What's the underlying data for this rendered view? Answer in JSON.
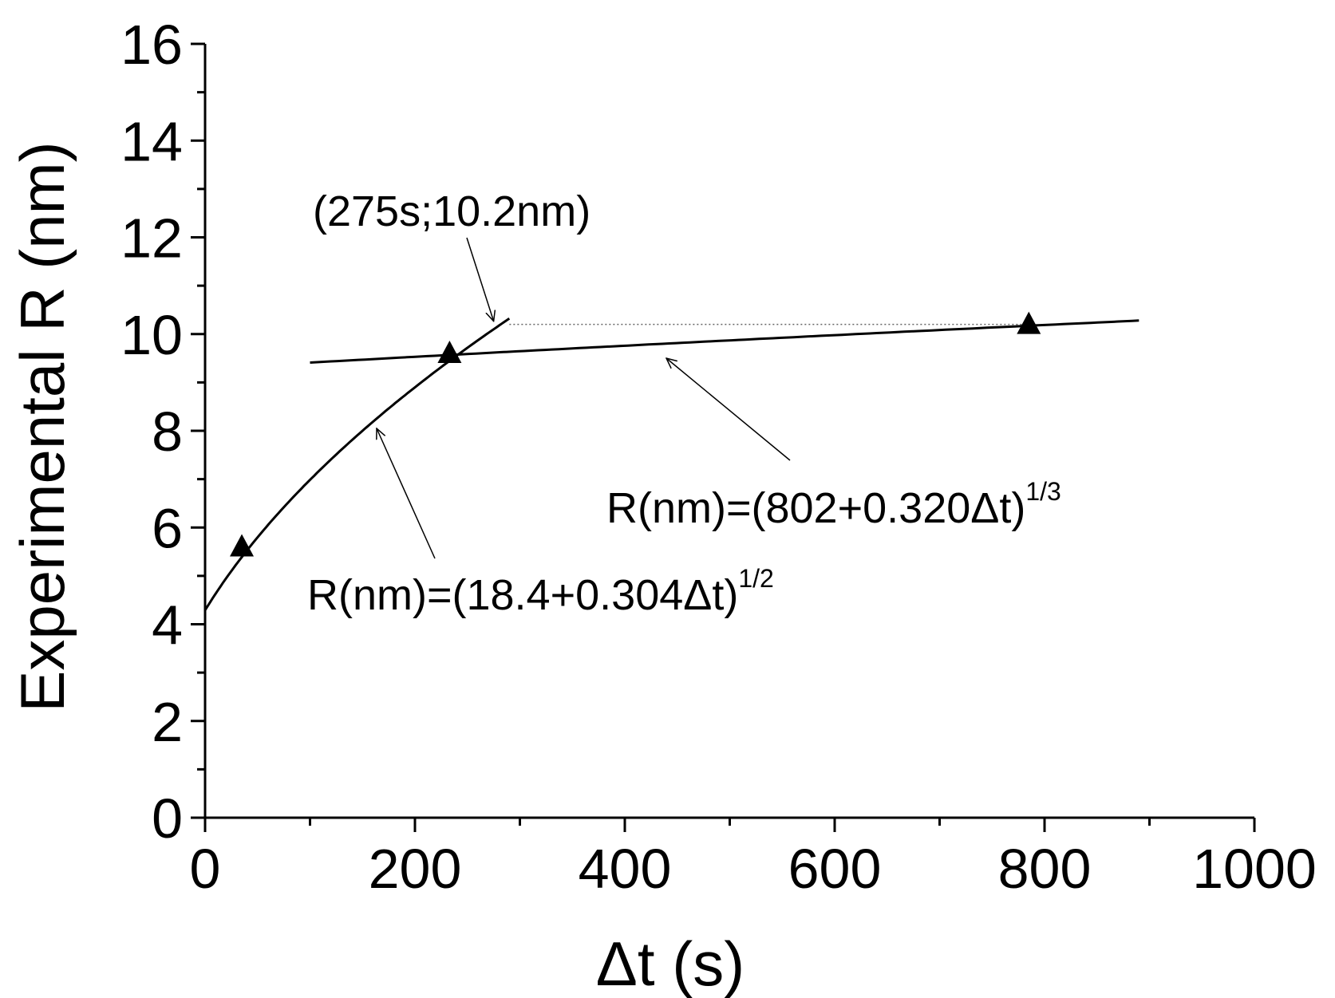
{
  "chart_data": {
    "type": "scatter",
    "xlabel": "Δt (s)",
    "ylabel": "Experimental R (nm)",
    "xlim": [
      0,
      1000
    ],
    "ylim": [
      0,
      16
    ],
    "x_ticks": [
      "0",
      "200",
      "400",
      "600",
      "800",
      "1000"
    ],
    "y_ticks": [
      "0",
      "2",
      "4",
      "6",
      "8",
      "10",
      "12",
      "14",
      "16"
    ],
    "grid": false,
    "series": [
      {
        "marker": "triangle",
        "points": [
          {
            "x": 35,
            "y": 5.6
          },
          {
            "x": 233,
            "y": 9.6
          },
          {
            "x": 785,
            "y": 10.2
          }
        ]
      }
    ],
    "fits": [
      {
        "label": "R(nm)=(18.4+0.304Δt)",
        "exponent": "1/2",
        "a": 18.4,
        "b": 0.304,
        "power": 0.5,
        "x_range": [
          0,
          290
        ]
      },
      {
        "label": "R(nm)=(802+0.320Δt)",
        "exponent": "1/3",
        "a": 802,
        "b": 0.32,
        "power": 0.3333,
        "x_range": [
          100,
          890
        ]
      }
    ],
    "annotations": [
      {
        "text": "(275s;10.2nm)",
        "x": 275,
        "y": 10.2
      },
      {
        "text": "dotted reference line",
        "y": 10.2,
        "x_range": [
          290,
          785
        ]
      }
    ],
    "color": "#000000"
  }
}
